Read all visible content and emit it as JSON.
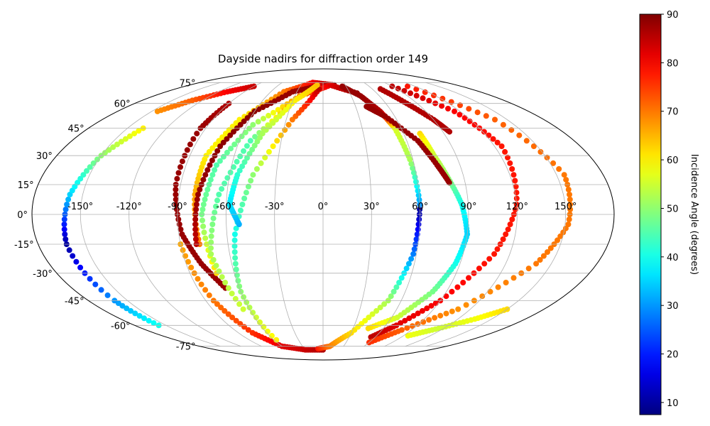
{
  "chart_data": {
    "type": "scatter",
    "projection": "mollweide",
    "title": "Dayside nadirs for diffraction order 149",
    "x_ticks": [
      -150,
      -120,
      -90,
      -60,
      -30,
      0,
      30,
      60,
      90,
      120,
      150
    ],
    "x_tick_labels": [
      "-150°",
      "-120°",
      "-90°",
      "-60°",
      "-30°",
      "0°",
      "30°",
      "60°",
      "90°",
      "120°",
      "150°"
    ],
    "y_ticks": [
      -75,
      -60,
      -45,
      -30,
      -15,
      0,
      15,
      30,
      45,
      60,
      75
    ],
    "y_tick_labels": [
      "-75°",
      "-60°",
      "-45°",
      "-30°",
      "-15°",
      "0°",
      "15°",
      "30°",
      "45°",
      "60°",
      "75°"
    ],
    "grid": true,
    "colorbar": {
      "label": "Incidence Angle (degrees)",
      "colormap": "jet",
      "range": [
        7.5,
        90
      ],
      "ticks": [
        10,
        20,
        30,
        40,
        50,
        60,
        70,
        80,
        90
      ],
      "tick_labels": [
        "10",
        "20",
        "30",
        "40",
        "50",
        "60",
        "70",
        "80",
        "90"
      ]
    },
    "tracks": [
      {
        "lon": [
          -157,
          -160,
          -162,
          -158,
          -150,
          -138
        ],
        "lat": [
          -60,
          -45,
          -15,
          10,
          30,
          45
        ],
        "inc": [
          40,
          30,
          10,
          35,
          50,
          60
        ]
      },
      {
        "lon": [
          -145,
          -130,
          -110,
          -90
        ],
        "lat": [
          55,
          62,
          68,
          72
        ],
        "inc": [
          68,
          72,
          80,
          84
        ]
      },
      {
        "lon": [
          -90,
          -94,
          -93,
          -88,
          -80,
          -70
        ],
        "lat": [
          60,
          45,
          15,
          -10,
          -25,
          -38
        ],
        "inc": [
          86,
          88,
          88,
          88,
          88,
          88
        ]
      },
      {
        "lon": [
          -90,
          -84,
          -75,
          -60,
          -30,
          0
        ],
        "lat": [
          -15,
          -45,
          -65,
          -75,
          -78,
          -78
        ],
        "inc": [
          66,
          70,
          76,
          82,
          84,
          86
        ]
      },
      {
        "lon": [
          -78,
          -80,
          -79,
          -68,
          -45,
          -15,
          15
        ],
        "lat": [
          -15,
          10,
          30,
          50,
          68,
          75,
          73
        ],
        "inc": [
          70,
          66,
          60,
          60,
          70,
          80,
          88
        ]
      },
      {
        "lon": [
          -72,
          -75,
          -70,
          -55,
          -25,
          10,
          38
        ],
        "lat": [
          -30,
          0,
          25,
          47,
          65,
          73,
          67
        ],
        "inc": [
          62,
          48,
          45,
          50,
          70,
          82,
          88
        ]
      },
      {
        "lon": [
          -65,
          -72,
          -65,
          -52,
          -30
        ],
        "lat": [
          -50,
          -20,
          10,
          38,
          60
        ],
        "inc": [
          55,
          52,
          45,
          45,
          70
        ]
      },
      {
        "lon": [
          -57,
          -60,
          -55,
          -45,
          -25,
          -5
        ],
        "lat": [
          -70,
          -40,
          -10,
          20,
          50,
          70
        ],
        "inc": [
          60,
          50,
          40,
          50,
          70,
          85
        ]
      },
      {
        "lon": [
          -80,
          -78,
          -72,
          -60,
          -35,
          -8
        ],
        "lat": [
          -15,
          10,
          35,
          55,
          68,
          72
        ],
        "inc": [
          85,
          88,
          89,
          89,
          88,
          88
        ]
      },
      {
        "lon": [
          -52,
          -58,
          -55,
          -45,
          -28,
          -8
        ],
        "lat": [
          -5,
          5,
          20,
          42,
          62,
          73
        ],
        "inc": [
          32,
          36,
          42,
          52,
          60,
          64
        ]
      },
      {
        "lon": [
          -8,
          10,
          30,
          50,
          58,
          60
        ],
        "lat": [
          -77,
          -75,
          -65,
          -45,
          -20,
          5
        ],
        "inc": [
          78,
          70,
          62,
          52,
          28,
          8
        ]
      },
      {
        "lon": [
          60,
          58,
          55,
          50,
          40,
          25
        ],
        "lat": [
          5,
          28,
          45,
          55,
          65,
          72
        ],
        "inc": [
          30,
          52,
          56,
          86,
          88,
          88
        ]
      },
      {
        "lon": [
          72,
          75,
          80,
          86,
          90,
          87,
          80,
          65,
          45
        ],
        "lat": [
          42,
          30,
          18,
          5,
          -10,
          -25,
          -40,
          -55,
          -62
        ],
        "inc": [
          62,
          55,
          50,
          40,
          35,
          40,
          48,
          55,
          62
        ]
      },
      {
        "lon": [
          40,
          52,
          68,
          75,
          80
        ],
        "lat": [
          58,
          52,
          38,
          25,
          16
        ],
        "inc": [
          88,
          88,
          88,
          88,
          88
        ]
      },
      {
        "lon": [
          70,
          80,
          90,
          95
        ],
        "lat": [
          70,
          60,
          50,
          43
        ],
        "inc": [
          86,
          86,
          86,
          86
        ]
      },
      {
        "lon": [
          90,
          115,
          125,
          120,
          110,
          90,
          70,
          55
        ],
        "lat": [
          72,
          55,
          35,
          5,
          -20,
          -45,
          -60,
          -68
        ],
        "inc": [
          85,
          80,
          78,
          78,
          78,
          80,
          82,
          85
        ]
      },
      {
        "lon": [
          110,
          140,
          155,
          152,
          140,
          110,
          80,
          60
        ],
        "lat": [
          72,
          50,
          20,
          -5,
          -25,
          -50,
          -63,
          -72
        ],
        "inc": [
          78,
          72,
          70,
          70,
          70,
          68,
          72,
          76
        ]
      },
      {
        "lon": [
          95,
          115,
          135,
          150
        ],
        "lat": [
          -67,
          -62,
          -56,
          -50
        ],
        "inc": [
          58,
          55,
          58,
          62
        ]
      }
    ]
  }
}
